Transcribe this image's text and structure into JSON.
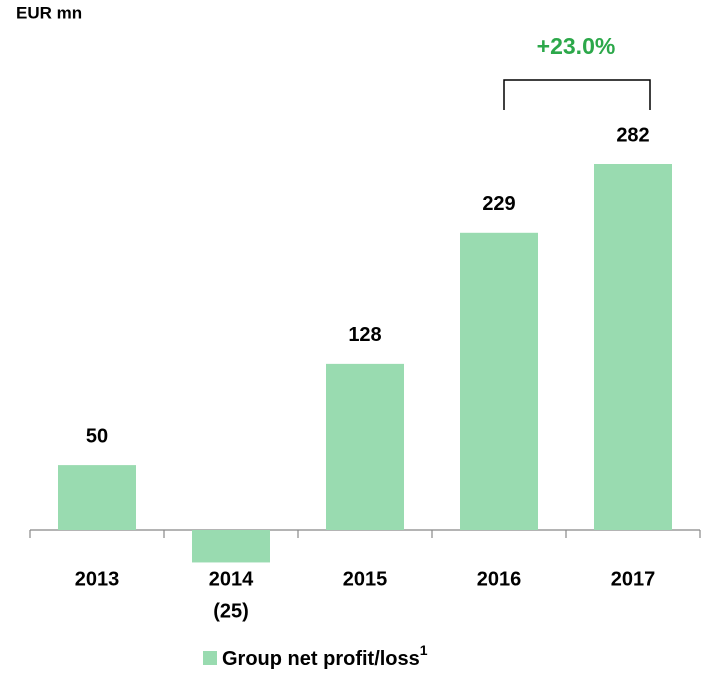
{
  "chart_data": {
    "type": "bar",
    "unit_label": "EUR mn",
    "categories": [
      "2013",
      "2014",
      "2015",
      "2016",
      "2017"
    ],
    "series": [
      {
        "name": "Group net profit/loss",
        "color": "#99dbb0",
        "values": [
          50,
          -25,
          128,
          229,
          282
        ],
        "value_labels": [
          "50",
          "(25)",
          "128",
          "229",
          "282"
        ]
      }
    ],
    "legend_footnote": "1",
    "annotation": "+23.0%",
    "annotation_color": "#2ca84a"
  }
}
